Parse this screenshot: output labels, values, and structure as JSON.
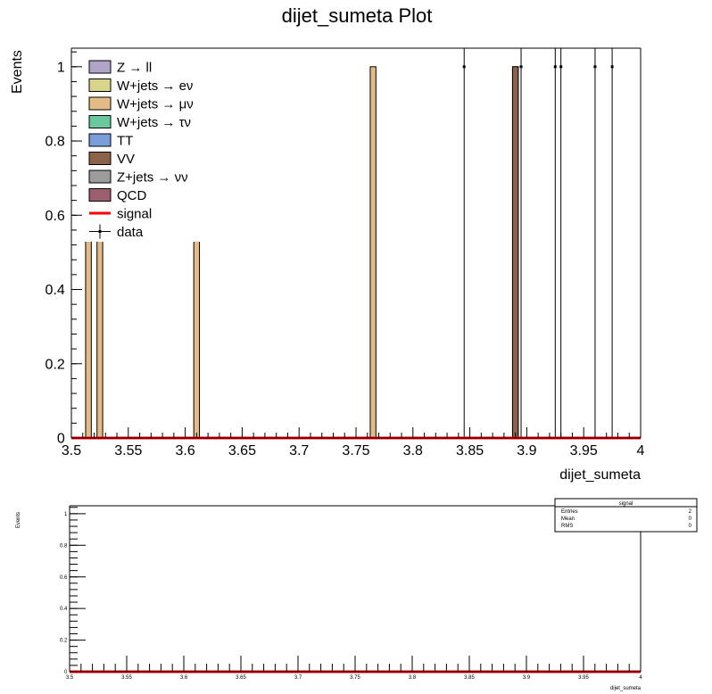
{
  "chart_data": [
    {
      "type": "bar",
      "title": "dijet_sumeta Plot",
      "xlabel": "dijet_sumeta",
      "ylabel": "Events",
      "xlim": [
        3.5,
        4.0
      ],
      "ylim": [
        0,
        1.05
      ],
      "x_ticks": [
        "3.5",
        "3.55",
        "3.6",
        "3.65",
        "3.7",
        "3.75",
        "3.8",
        "3.85",
        "3.9",
        "3.95",
        "4"
      ],
      "y_ticks": [
        "0",
        "0.2",
        "0.4",
        "0.6",
        "0.8",
        "1"
      ],
      "legend_position": "top-left",
      "legend": [
        {
          "label": "Z → ll",
          "color": "#b0a4c8",
          "kind": "box"
        },
        {
          "label": "W+jets → eν",
          "color": "#d7d58c",
          "kind": "box"
        },
        {
          "label": "W+jets → μν",
          "color": "#e4bb84",
          "kind": "box"
        },
        {
          "label": "W+jets → τν",
          "color": "#6ac79e",
          "kind": "box"
        },
        {
          "label": "TT",
          "color": "#7a9ddc",
          "kind": "box"
        },
        {
          "label": "VV",
          "color": "#8c624a",
          "kind": "box"
        },
        {
          "label": "Z+jets → νν",
          "color": "#9c9c9c",
          "kind": "box"
        },
        {
          "label": "QCD",
          "color": "#9a5e6e",
          "kind": "box"
        },
        {
          "label": "signal",
          "color": "#ff0000",
          "kind": "line"
        },
        {
          "label": "data",
          "color": "#000000",
          "kind": "marker"
        }
      ],
      "series": [
        {
          "name": "W+jets → μν",
          "color": "#e4bb84",
          "bars": [
            {
              "x0": 3.5125,
              "x1": 3.5175,
              "value": 1
            },
            {
              "x0": 3.5225,
              "x1": 3.5275,
              "value": 1
            },
            {
              "x0": 3.6075,
              "x1": 3.6125,
              "value": 1
            },
            {
              "x0": 3.7625,
              "x1": 3.7675,
              "value": 1
            },
            {
              "x0": 3.8875,
              "x1": 3.8925,
              "value": 1
            }
          ]
        },
        {
          "name": "VV",
          "color": "#8c624a",
          "bars": [
            {
              "x0": 3.8875,
              "x1": 3.8925,
              "value": 1
            }
          ]
        },
        {
          "name": "signal",
          "color": "#ff0000",
          "line_value": 0
        },
        {
          "name": "data",
          "color": "#000000",
          "points": [
            {
              "x": 3.845,
              "value": 1
            },
            {
              "x": 3.895,
              "value": 1
            },
            {
              "x": 3.925,
              "value": 1
            },
            {
              "x": 3.93,
              "value": 1
            },
            {
              "x": 3.96,
              "value": 1
            },
            {
              "x": 3.975,
              "value": 1
            }
          ]
        }
      ]
    },
    {
      "type": "line",
      "xlabel": "dijet_sumeta",
      "ylabel": "Events",
      "xlim": [
        3.5,
        4.0
      ],
      "ylim": [
        0,
        1.05
      ],
      "x_ticks": [
        "3.5",
        "3.55",
        "3.6",
        "3.65",
        "3.7",
        "3.75",
        "3.8",
        "3.85",
        "3.9",
        "3.95",
        "4"
      ],
      "y_ticks": [
        "0",
        "0.2",
        "0.4",
        "0.6",
        "0.8",
        "1"
      ],
      "series": [
        {
          "name": "signal",
          "color": "#ff0000",
          "line_value": 0
        }
      ],
      "stats_box": {
        "title": "signal",
        "rows": [
          {
            "label": "Entries",
            "value": "2"
          },
          {
            "label": "Mean",
            "value": "0"
          },
          {
            "label": "RMS",
            "value": "0"
          }
        ]
      }
    }
  ]
}
